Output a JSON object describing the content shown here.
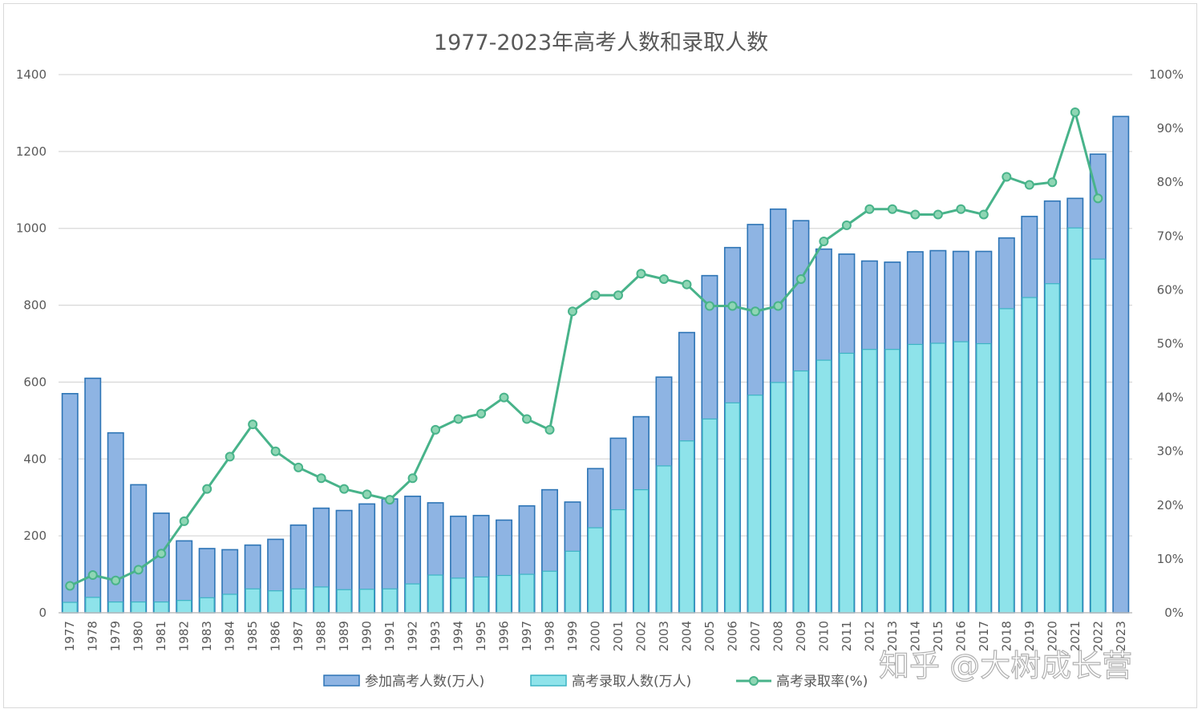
{
  "chart_data": {
    "type": "bar",
    "title": "1977-2023年高考人数和录取人数",
    "categories": [
      "1977",
      "1978",
      "1979",
      "1980",
      "1981",
      "1982",
      "1983",
      "1984",
      "1985",
      "1986",
      "1987",
      "1988",
      "1989",
      "1990",
      "1991",
      "1992",
      "1993",
      "1994",
      "1995",
      "1996",
      "1997",
      "1998",
      "1999",
      "2000",
      "2001",
      "2002",
      "2003",
      "2004",
      "2005",
      "2006",
      "2007",
      "2008",
      "2009",
      "2010",
      "2011",
      "2012",
      "2013",
      "2014",
      "2015",
      "2016",
      "2017",
      "2018",
      "2019",
      "2020",
      "2021",
      "2022",
      "2023"
    ],
    "series": [
      {
        "name": "参加高考人数(万人)",
        "type": "bar",
        "axis": "left",
        "color": "#8eb4e3",
        "values": [
          570,
          610,
          468,
          333,
          259,
          187,
          167,
          164,
          176,
          191,
          228,
          272,
          266,
          283,
          296,
          303,
          286,
          251,
          253,
          241,
          278,
          320,
          288,
          375,
          454,
          510,
          613,
          729,
          877,
          950,
          1010,
          1050,
          1020,
          946,
          933,
          915,
          912,
          939,
          942,
          940,
          940,
          975,
          1031,
          1071,
          1078,
          1193,
          1291
        ]
      },
      {
        "name": "高考录取人数(万人)",
        "type": "bar",
        "axis": "left",
        "color": "#8ee3ea",
        "values": [
          27,
          40,
          28,
          28,
          28,
          32,
          39,
          48,
          62,
          57,
          62,
          67,
          60,
          61,
          62,
          75,
          98,
          90,
          93,
          97,
          100,
          108,
          160,
          221,
          268,
          320,
          382,
          447,
          504,
          546,
          566,
          599,
          629,
          657,
          675,
          685,
          685,
          698,
          701,
          705,
          700,
          791,
          820,
          856,
          1001,
          920,
          null
        ]
      },
      {
        "name": "高考录取率(%)",
        "type": "line",
        "axis": "right",
        "color": "#48b38a",
        "values": [
          5,
          7,
          6,
          8,
          11,
          17,
          23,
          29,
          35,
          30,
          27,
          25,
          23,
          22,
          21,
          25,
          34,
          36,
          37,
          40,
          36,
          34,
          56,
          59,
          59,
          63,
          62,
          61,
          57,
          57,
          56,
          57,
          62,
          69,
          72,
          75,
          75,
          74,
          74,
          75,
          74,
          81,
          79.5,
          80,
          93,
          77,
          null
        ]
      }
    ],
    "y_left": {
      "range": [
        0,
        1400
      ],
      "ticks": [
        "0",
        "200",
        "400",
        "600",
        "800",
        "1000",
        "1200",
        "1400"
      ]
    },
    "y_right": {
      "range": [
        0,
        100
      ],
      "ticks": [
        "0%",
        "10%",
        "20%",
        "30%",
        "40%",
        "50%",
        "60%",
        "70%",
        "80%",
        "90%",
        "100%"
      ]
    },
    "grid": true,
    "legend_position": "bottom"
  },
  "watermark": "知乎 @大树成长营"
}
